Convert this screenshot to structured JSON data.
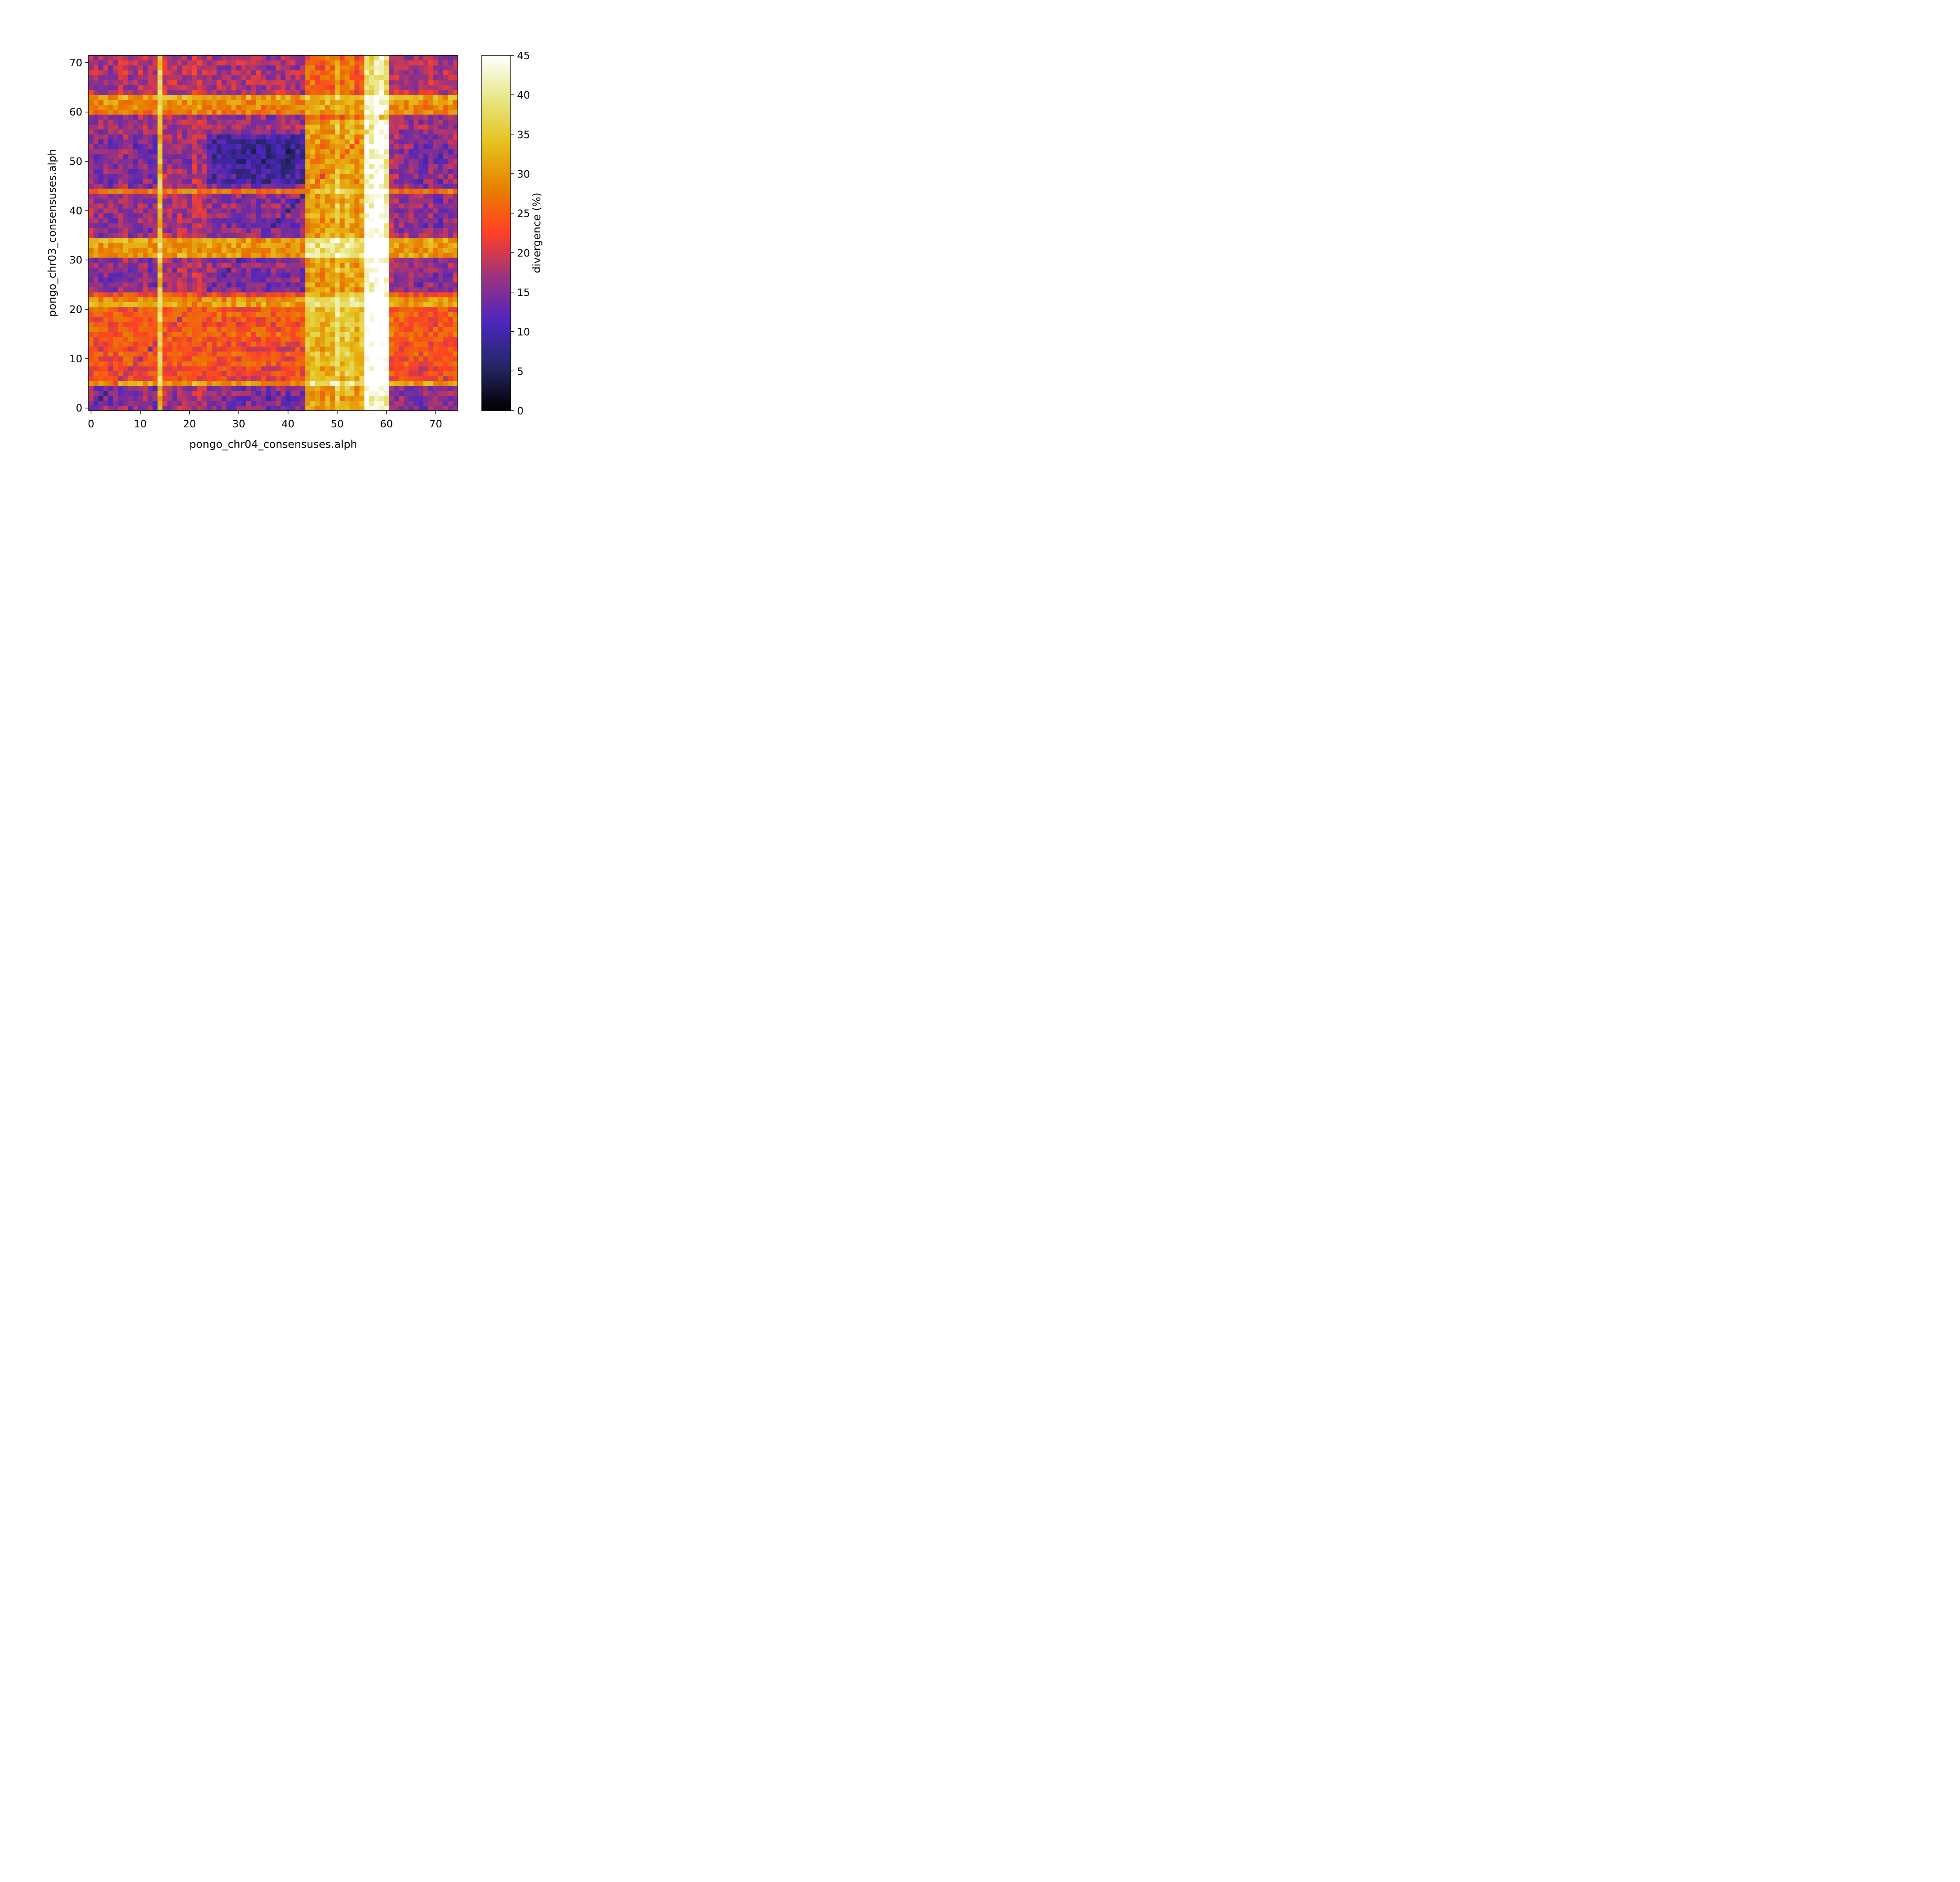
{
  "chart_data": {
    "type": "heatmap",
    "title": "",
    "xlabel": "pongo_chr04_consensuses.alph",
    "ylabel": "pongo_chr03_consensuses.alph",
    "colorbar_label": "divergence (%)",
    "colormap": "CMRmap",
    "grid": false,
    "n_cols": 75,
    "n_rows": 72,
    "xlim": [
      -0.5,
      74.5
    ],
    "ylim": [
      -0.5,
      71.5
    ],
    "xticks": [
      0,
      10,
      20,
      30,
      40,
      50,
      60,
      70
    ],
    "yticks": [
      0,
      10,
      20,
      30,
      40,
      50,
      60,
      70
    ],
    "vmin": 0,
    "vmax": 45,
    "colorbar_ticks": [
      0,
      5,
      10,
      15,
      20,
      25,
      30,
      35,
      40,
      45
    ],
    "pattern": {
      "column_base": [
        17,
        15,
        14,
        16,
        14,
        15,
        16,
        17,
        15,
        14,
        16,
        17,
        15,
        14,
        34,
        18,
        17,
        16,
        18,
        17,
        16,
        19,
        18,
        17,
        16,
        15,
        16,
        15,
        14,
        16,
        15,
        14,
        15,
        14,
        15,
        14,
        13,
        14,
        15,
        14,
        13,
        14,
        15,
        14,
        24,
        25,
        24,
        23,
        25,
        24,
        29,
        24,
        27,
        26,
        23,
        25,
        38,
        37,
        40,
        39,
        36,
        18,
        17,
        16,
        17,
        16,
        15,
        14,
        15,
        16,
        15,
        14,
        15,
        16,
        17
      ],
      "row_base": [
        15,
        14,
        13,
        15,
        14,
        30,
        22,
        23,
        22,
        24,
        23,
        24,
        22,
        23,
        24,
        25,
        24,
        23,
        24,
        25,
        24,
        31,
        29,
        23,
        15,
        14,
        15,
        14,
        15,
        16,
        15,
        30,
        29,
        30,
        31,
        16,
        15,
        14,
        15,
        16,
        15,
        16,
        15,
        16,
        26,
        15,
        14,
        15,
        14,
        15,
        12,
        12,
        12,
        13,
        14,
        15,
        16,
        17,
        16,
        16,
        27,
        28,
        29,
        31,
        18,
        17,
        18,
        17,
        18,
        17,
        18,
        17
      ],
      "block_region": {
        "cols": [
          44,
          60
        ],
        "rows": [
          0,
          58
        ],
        "offset": 6
      },
      "low_block": {
        "cols": [
          24,
          43
        ],
        "rows": [
          46,
          55
        ],
        "offset": -5
      },
      "noise": 4,
      "seed": 7
    }
  }
}
